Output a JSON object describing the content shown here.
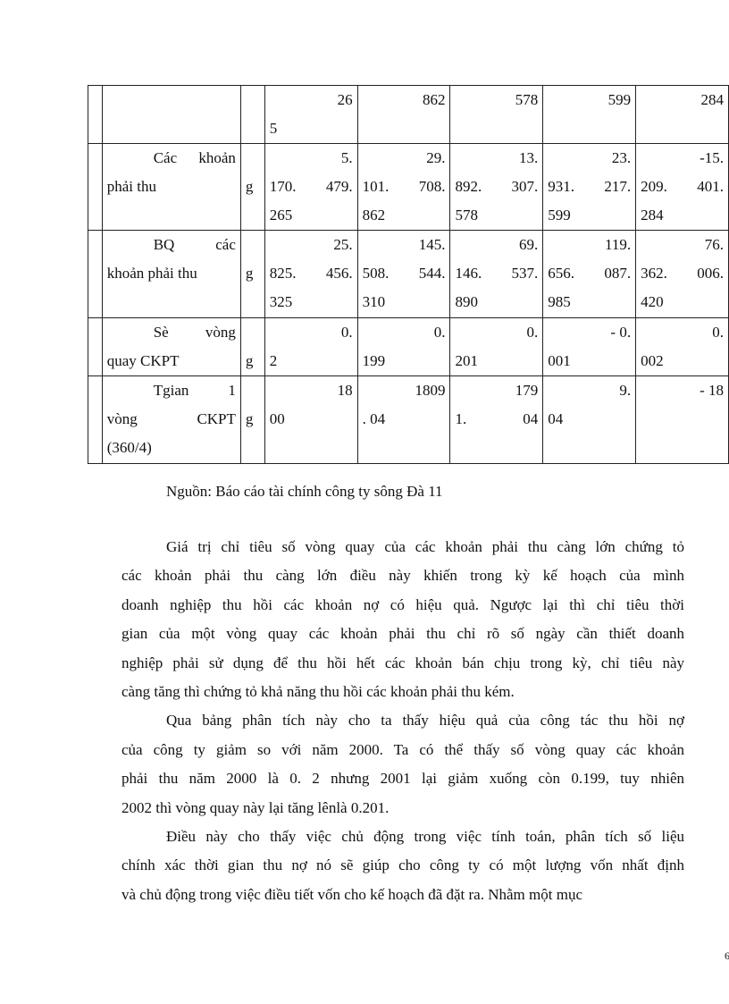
{
  "table": {
    "rows": [
      {
        "label": [],
        "unit": "",
        "cells": [
          [
            "26",
            "5"
          ],
          [
            "862"
          ],
          [
            "578"
          ],
          [
            "599"
          ],
          [
            "284"
          ]
        ]
      },
      {
        "label": [
          "Các khoản",
          "phải thu"
        ],
        "unit": "g",
        "cells": [
          [
            "5.",
            "170. 479.",
            "265"
          ],
          [
            "29.",
            "101. 708.",
            "862"
          ],
          [
            "13.",
            "892. 307.",
            "578"
          ],
          [
            "23.",
            "931. 217.",
            "599"
          ],
          [
            "-15.",
            "209. 401.",
            "284"
          ]
        ]
      },
      {
        "label": [
          "BQ các",
          "khoản phải thu"
        ],
        "unit": "g",
        "cells": [
          [
            "25.",
            "825. 456.",
            "325"
          ],
          [
            "145.",
            "508. 544.",
            "310"
          ],
          [
            "69.",
            "146. 537.",
            "890"
          ],
          [
            "119.",
            "656. 087.",
            "985"
          ],
          [
            "76.",
            "362. 006.",
            "420"
          ]
        ]
      },
      {
        "label": [
          "Sè vòng",
          "quay CKPT"
        ],
        "unit": "g",
        "cells": [
          [
            "0.",
            "2"
          ],
          [
            "0.",
            "199"
          ],
          [
            "0.",
            "201"
          ],
          [
            "- 0.",
            "001"
          ],
          [
            "0.",
            "002"
          ]
        ]
      },
      {
        "label": [
          "Tgian 1",
          "vòng CKPT",
          "(360/4)"
        ],
        "unit": "g",
        "cells": [
          [
            "18",
            "00"
          ],
          [
            "1809",
            ". 04"
          ],
          [
            "179",
            "1. 04"
          ],
          [
            "9.",
            "04"
          ],
          [
            "- 18"
          ]
        ]
      }
    ]
  },
  "source": "Nguồn: Báo cáo tài chính công ty sông Đà 11",
  "paragraphs": [
    [
      "Giá trị chỉ tiêu số vòng quay của các khoản phải thu càng lớn chứng tỏ",
      "các khoản phải thu càng lớn điều này khiến trong kỳ kế hoạch của mình",
      "doanh nghiệp thu hồi các khoản nợ có hiệu quả. Ngược lại thì chỉ tiêu thời",
      "gian của một vòng quay các khoản phải thu chỉ rõ số ngày cần thiết doanh",
      "nghiệp phải sử dụng để thu hồi hết các khoản bán chịu trong kỳ, chỉ tiêu này",
      "càng tăng thì chứng tỏ khả năng thu hồi các khoản phải thu kém."
    ],
    [
      "Qua bảng phân tích này cho ta thấy hiệu quả của công tác thu hồi nợ",
      "của công ty giảm so với năm 2000. Ta có thể thấy số vòng quay các khoản",
      "phải thu năm 2000 là 0. 2 nhưng 2001 lại giảm xuống còn 0.199, tuy nhiên",
      "2002 thì vòng quay này lại tăng lênlà 0.201."
    ],
    [
      "Điều này cho thấy việc chủ động trong việc tính toán, phân tích số liệu",
      "chính xác thời gian thu nợ nó sẽ giúp cho công ty có một lượng vốn nhất định",
      "và chủ động trong việc điều tiết vốn cho kế hoạch đã đặt ra. Nhằm một mục"
    ]
  ],
  "page_number": "6"
}
